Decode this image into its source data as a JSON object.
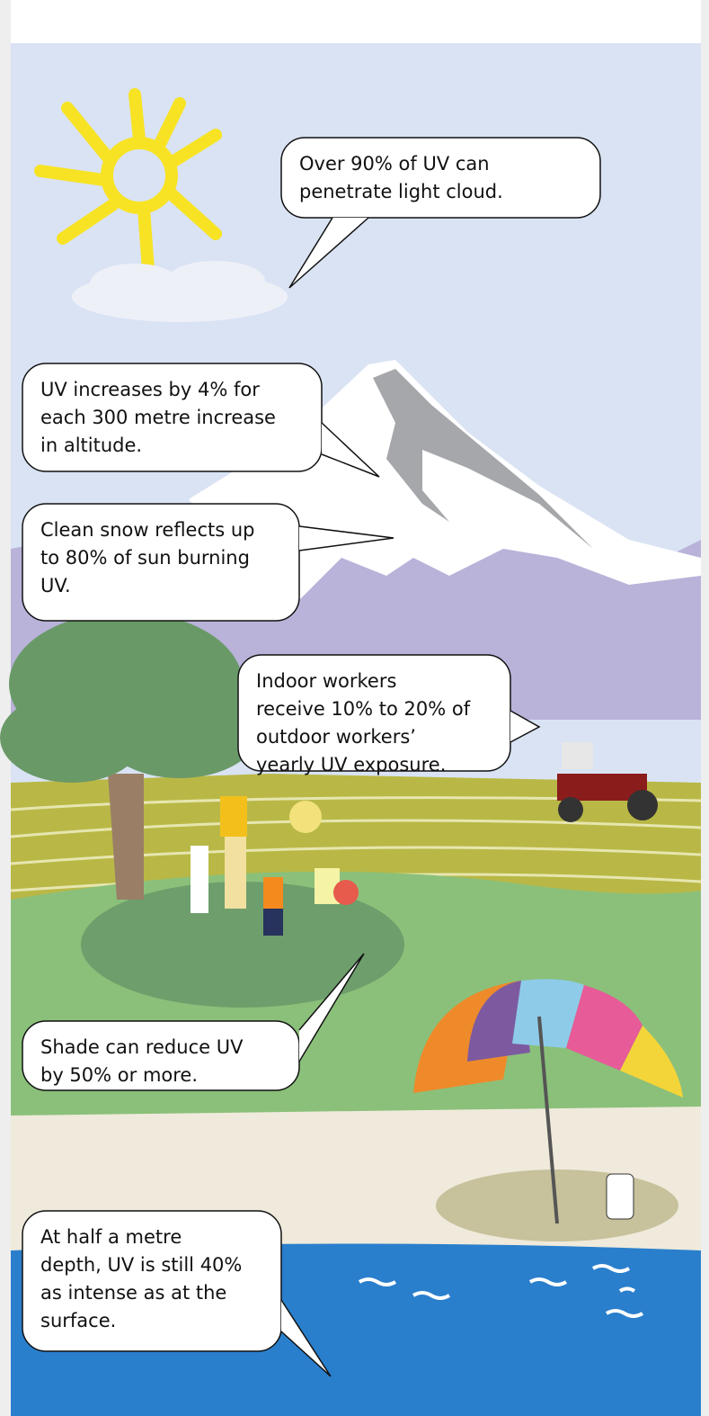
{
  "callouts": [
    {
      "lines": [
        "Over 90% of UV can",
        "penetrate light cloud."
      ]
    },
    {
      "lines": [
        "UV increases by 4% for",
        "each 300 metre increase",
        "in altitude."
      ]
    },
    {
      "lines": [
        "Clean snow reflects up",
        "to 80% of sun burning",
        "UV."
      ]
    },
    {
      "lines": [
        "Indoor workers",
        "receive 10% to 20% of",
        "outdoor workers’",
        "yearly UV exposure."
      ]
    },
    {
      "lines": [
        "Shade can reduce UV",
        "by 50% or more."
      ]
    },
    {
      "lines": [
        "At half a metre",
        "depth, UV is still 40%",
        "as intense as at the",
        "surface."
      ]
    }
  ]
}
